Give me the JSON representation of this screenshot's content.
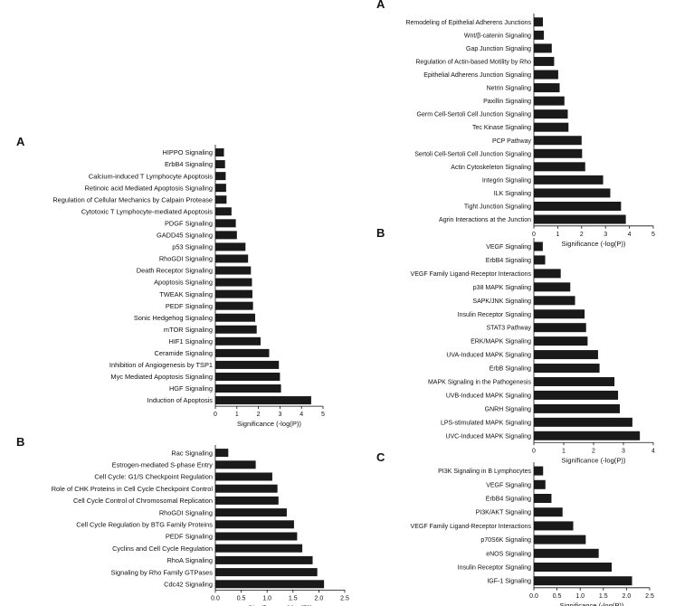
{
  "figure": {
    "bar_color": "#1a1a1a",
    "background": "#ffffff"
  },
  "chart_data": [
    {
      "panel_label": "A",
      "type": "bar",
      "orientation": "horizontal",
      "xlabel": "Significance (-log(P))",
      "xlim": [
        0,
        5
      ],
      "xticks": [
        "0",
        "1",
        "2",
        "3",
        "4",
        "5"
      ],
      "categories": [
        "HIPPO Signaling",
        "ErbB4 Signaling",
        "Calcium-induced T Lymphocyte Apoptosis",
        "Retinoic acid Mediated Apoptosis Signaling",
        "Regulation of Cellular Mechanics by Calpain Protease",
        "Cytotoxic T Lymphocyte-mediated Apoptosis",
        "PDGF Signaling",
        "GADD45 Signaling",
        "p53 Signaling",
        "RhoGDI Signaling",
        "Death Receptor Signaling",
        "Apoptosis Signaling",
        "TWEAK Signaling",
        "PEDF Signaling",
        "Sonic Hedgehog Signaling",
        "mTOR Signaling",
        "HIF1 Signaling",
        "Ceramide Signaling",
        "Inhibition of Angiogenesis by TSP1",
        "Myc Mediated Apoptosis Signaling",
        "HGF Signaling",
        "Induction of Apoptosis"
      ],
      "values": [
        0.4,
        0.45,
        0.48,
        0.5,
        0.52,
        0.75,
        0.95,
        1.0,
        1.4,
        1.52,
        1.65,
        1.7,
        1.72,
        1.75,
        1.85,
        1.92,
        2.1,
        2.5,
        2.95,
        3.0,
        3.05,
        4.45
      ]
    },
    {
      "panel_label": "B",
      "type": "bar",
      "orientation": "horizontal",
      "xlabel": "Significance (-log(P))",
      "xlim": [
        0,
        2.5
      ],
      "xticks": [
        "0.0",
        "0.5",
        "1.0",
        "1.5",
        "2.0",
        "2.5"
      ],
      "categories": [
        "Rac Signaling",
        "Estrogen-mediated S-phase Entry",
        "Cell Cycle: G1/S Checkpoint Regulation",
        "Role of CHK Proteins in Cell Cycle Checkpoint Control",
        "Cell Cycle Control of Chromosomal Replication",
        "RhoGDI Signaling",
        "Cell Cycle Regulation by BTG Family Proteins",
        "PEDF Signaling",
        "Cyclins and Cell Cycle Regulation",
        "RhoA Signaling",
        "Signaling by Rho Family GTPases",
        "Cdc42 Signaling"
      ],
      "values": [
        0.25,
        0.78,
        1.1,
        1.2,
        1.22,
        1.38,
        1.52,
        1.58,
        1.68,
        1.88,
        1.97,
        2.1
      ]
    },
    {
      "panel_label": "A",
      "type": "bar",
      "orientation": "horizontal",
      "xlabel": "Significance (-log(P))",
      "xlim": [
        0,
        5
      ],
      "xticks": [
        "0",
        "1",
        "2",
        "3",
        "4",
        "5"
      ],
      "categories": [
        "Remodeling of Epithelial Adherens Junctions",
        "Wnt/β-catenin Signaling",
        "Gap Junction Signaling",
        "Regulation of Actin-based Motility by Rho",
        "Epithelial Adherens Junction Signaling",
        "Netrin Signaling",
        "Paxillin Signaling",
        "Germ Cell-Sertoli Cell Junction Signaling",
        "Tec Kinase Signaling",
        "PCP Pathway",
        "Sertoli Cell-Sertoli Cell Junction Signaling",
        "Actin Cytoskeleton Signaling",
        "Integrin Signaling",
        "ILK Signaling",
        "Tight Junction Signaling",
        "Agrin Interactions at the Junction"
      ],
      "values": [
        0.38,
        0.42,
        0.75,
        0.85,
        1.02,
        1.08,
        1.28,
        1.42,
        1.45,
        2.0,
        2.02,
        2.15,
        2.9,
        3.2,
        3.65,
        3.85
      ]
    },
    {
      "panel_label": "B",
      "type": "bar",
      "orientation": "horizontal",
      "xlabel": "Significance (-log(P))",
      "xlim": [
        0,
        4
      ],
      "xticks": [
        "0",
        "1",
        "2",
        "3",
        "4"
      ],
      "categories": [
        "VEGF Signaling",
        "ErbB4 Signaling",
        "VEGF Family Ligand-Receptor Interactions",
        "p38 MAPK Signaling",
        "SAPK/JNK Signaling",
        "Insulin Receptor Signaling",
        "STAT3 Pathway",
        "ERK/MAPK Signaling",
        "UVA-Induced MAPK Signaling",
        "ErbB Signaling",
        "MAPK Signaling in the Pathogenesis",
        "UVB-Induced MAPK Signaling",
        "GNRH Signaling",
        "LPS-stimulated MAPK Signaling",
        "UVC-Induced MAPK Signaling"
      ],
      "values": [
        0.3,
        0.38,
        0.9,
        1.22,
        1.38,
        1.7,
        1.75,
        1.8,
        2.15,
        2.2,
        2.7,
        2.82,
        2.88,
        3.3,
        3.55
      ]
    },
    {
      "panel_label": "C",
      "type": "bar",
      "orientation": "horizontal",
      "xlabel": "Significance (-log(P))",
      "xlim": [
        0,
        2.5
      ],
      "xticks": [
        "0.0",
        "0.5",
        "1.0",
        "1.5",
        "2.0",
        "2.5"
      ],
      "categories": [
        "PI3K Signaling in B Lymphocytes",
        "VEGF Signaling",
        "ErbB4 Signaling",
        "PI3K/AKT Signaling",
        "VEGF Family Ligand-Receptor Interactions",
        "p70S6K Signaling",
        "eNOS Signaling",
        "Insulin Receptor Signaling",
        "IGF-1 Signaling"
      ],
      "values": [
        0.2,
        0.25,
        0.38,
        0.62,
        0.85,
        1.12,
        1.4,
        1.68,
        2.12
      ]
    }
  ]
}
